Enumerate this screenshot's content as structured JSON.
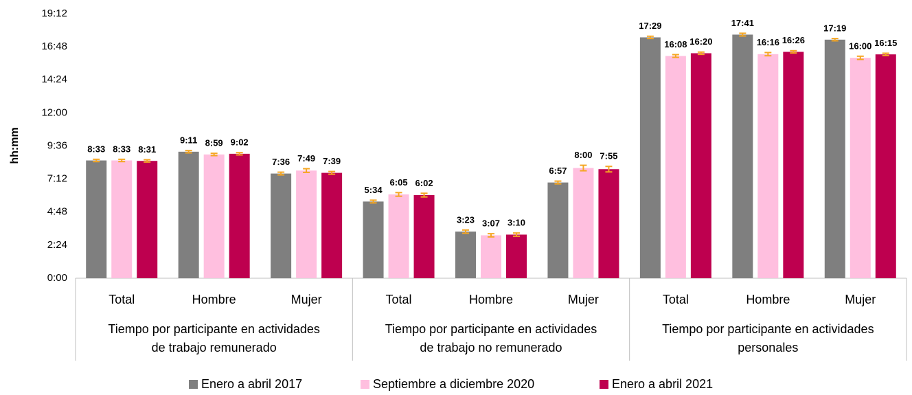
{
  "chart_data": {
    "type": "bar",
    "y_label": "hh:mm",
    "categories": [
      "Total",
      "Hombre",
      "Mujer",
      "Total",
      "Hombre",
      "Mujer",
      "Total",
      "Hombre",
      "Mujer"
    ],
    "groups": [
      {
        "label": "Tiempo por participante en actividades\nde trabajo remunerado",
        "span": 3
      },
      {
        "label": "Tiempo por participante en actividades\nde trabajo no remunerado",
        "span": 3
      },
      {
        "label": "Tiempo por participante en actividades\npersonales",
        "span": 3
      }
    ],
    "series": [
      {
        "name": "Enero a abril 2017",
        "color": "#7f7f7f",
        "values": [
          513,
          551,
          456,
          334,
          203,
          417,
          1049,
          1061,
          1039
        ],
        "value_labels": [
          "8:33",
          "9:11",
          "7:36",
          "5:34",
          "3:23",
          "6:57",
          "17:29",
          "17:41",
          "17:19"
        ],
        "errors": [
          5,
          5,
          6,
          6,
          7,
          6,
          5,
          6,
          5
        ]
      },
      {
        "name": "Septiembre a diciembre 2020",
        "color": "#ffbfdf",
        "values": [
          513,
          539,
          469,
          365,
          187,
          480,
          968,
          976,
          960
        ],
        "value_labels": [
          "8:33",
          "8:59",
          "7:49",
          "6:05",
          "3:07",
          "8:00",
          "16:08",
          "16:16",
          "16:00"
        ],
        "errors": [
          5,
          5,
          8,
          8,
          7,
          12,
          6,
          7,
          7
        ]
      },
      {
        "name": "Enero a abril 2021",
        "color": "#be004f",
        "values": [
          511,
          542,
          459,
          362,
          190,
          475,
          980,
          986,
          975
        ],
        "value_labels": [
          "8:31",
          "9:02",
          "7:39",
          "6:02",
          "3:10",
          "7:55",
          "16:20",
          "16:26",
          "16:15"
        ],
        "errors": [
          5,
          5,
          6,
          8,
          7,
          12,
          5,
          5,
          5
        ]
      }
    ],
    "error_color": "#f5a623",
    "ylim": [
      0,
      1152
    ],
    "yticks": [
      {
        "value": 0,
        "label": "0:00"
      },
      {
        "value": 144,
        "label": "2:24"
      },
      {
        "value": 288,
        "label": "4:48"
      },
      {
        "value": 432,
        "label": "7:12"
      },
      {
        "value": 576,
        "label": "9:36"
      },
      {
        "value": 720,
        "label": "12:00"
      },
      {
        "value": 864,
        "label": "14:24"
      },
      {
        "value": 1008,
        "label": "16:48"
      },
      {
        "value": 1152,
        "label": "19:12"
      }
    ],
    "grid": false
  }
}
